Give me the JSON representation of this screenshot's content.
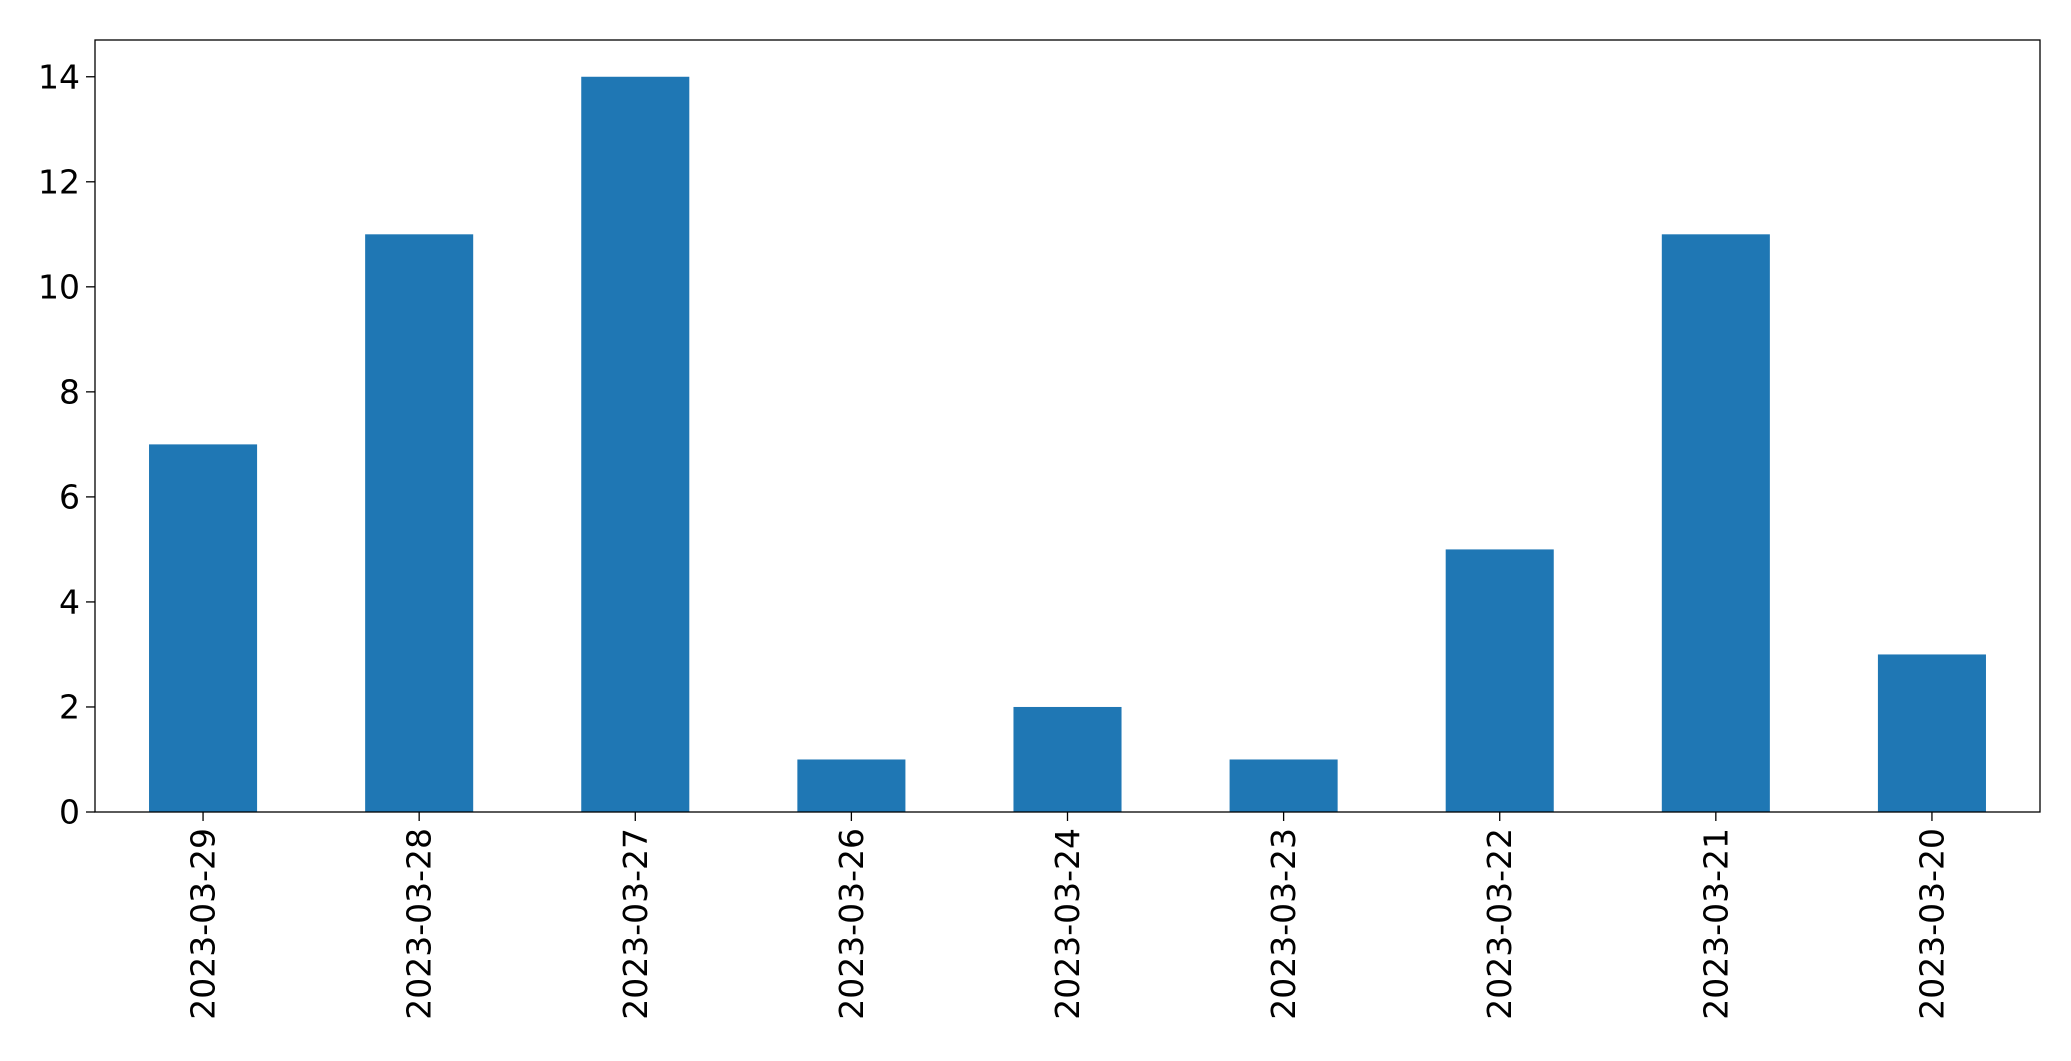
{
  "chart_data": {
    "type": "bar",
    "categories": [
      "2023-03-29",
      "2023-03-28",
      "2023-03-27",
      "2023-03-26",
      "2023-03-24",
      "2023-03-23",
      "2023-03-22",
      "2023-03-21",
      "2023-03-20"
    ],
    "values": [
      7,
      11,
      14,
      1,
      2,
      1,
      5,
      11,
      3
    ],
    "ylim": [
      0,
      14.7
    ],
    "yticks": [
      0,
      2,
      4,
      6,
      8,
      10,
      12,
      14
    ],
    "grid": false,
    "legend": "none",
    "bar_color": "#1f77b4"
  }
}
